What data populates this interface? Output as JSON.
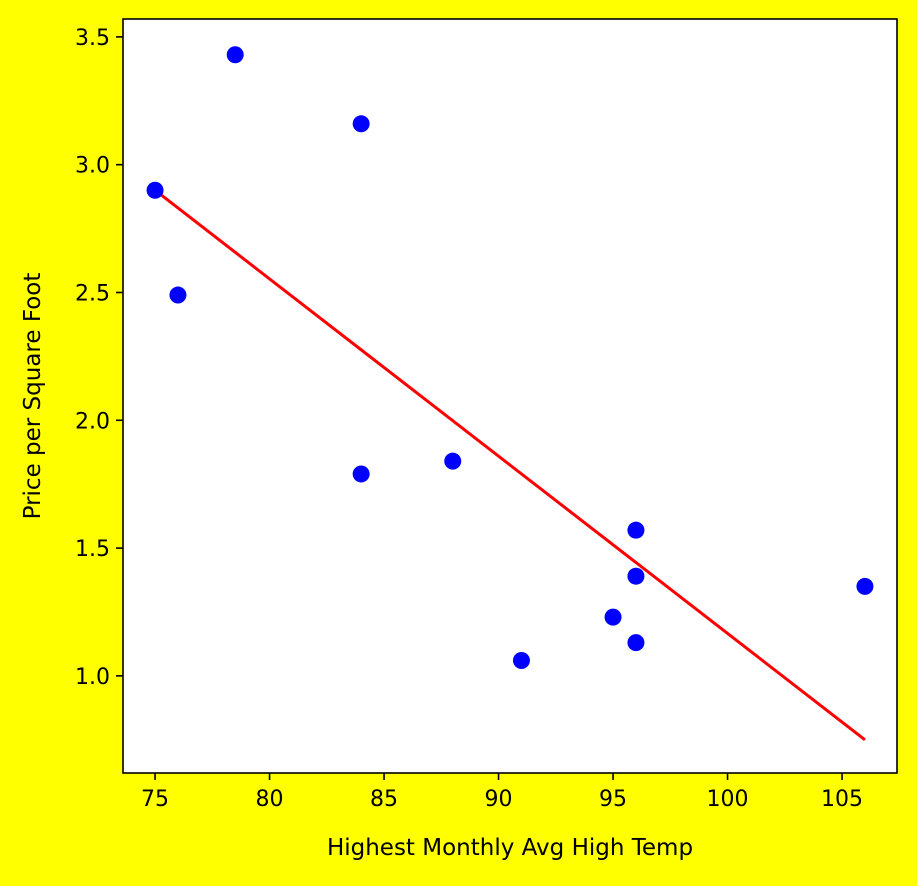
{
  "chart_data": {
    "type": "scatter",
    "title": "",
    "xlabel": "Highest Monthly Avg High Temp",
    "ylabel": "Price per Square Foot",
    "xlim": [
      73.6,
      107.4
    ],
    "ylim": [
      0.62,
      3.57
    ],
    "xticks": [
      75,
      80,
      85,
      90,
      95,
      100,
      105
    ],
    "yticks": [
      1.0,
      1.5,
      2.0,
      2.5,
      3.0,
      3.5
    ],
    "grid": false,
    "background_color": "#ffff00",
    "plot_background_color": "#ffffff",
    "points": {
      "color": "#0000ff",
      "x": [
        75,
        76,
        78.5,
        84,
        84,
        88,
        91,
        95,
        96,
        96,
        96,
        106
      ],
      "y": [
        2.9,
        2.49,
        3.43,
        3.16,
        1.79,
        1.84,
        1.06,
        1.23,
        1.57,
        1.39,
        1.13,
        1.35
      ]
    },
    "trend_line": {
      "color": "#ff0000",
      "x": [
        75,
        106
      ],
      "y": [
        2.9,
        0.75
      ]
    }
  }
}
